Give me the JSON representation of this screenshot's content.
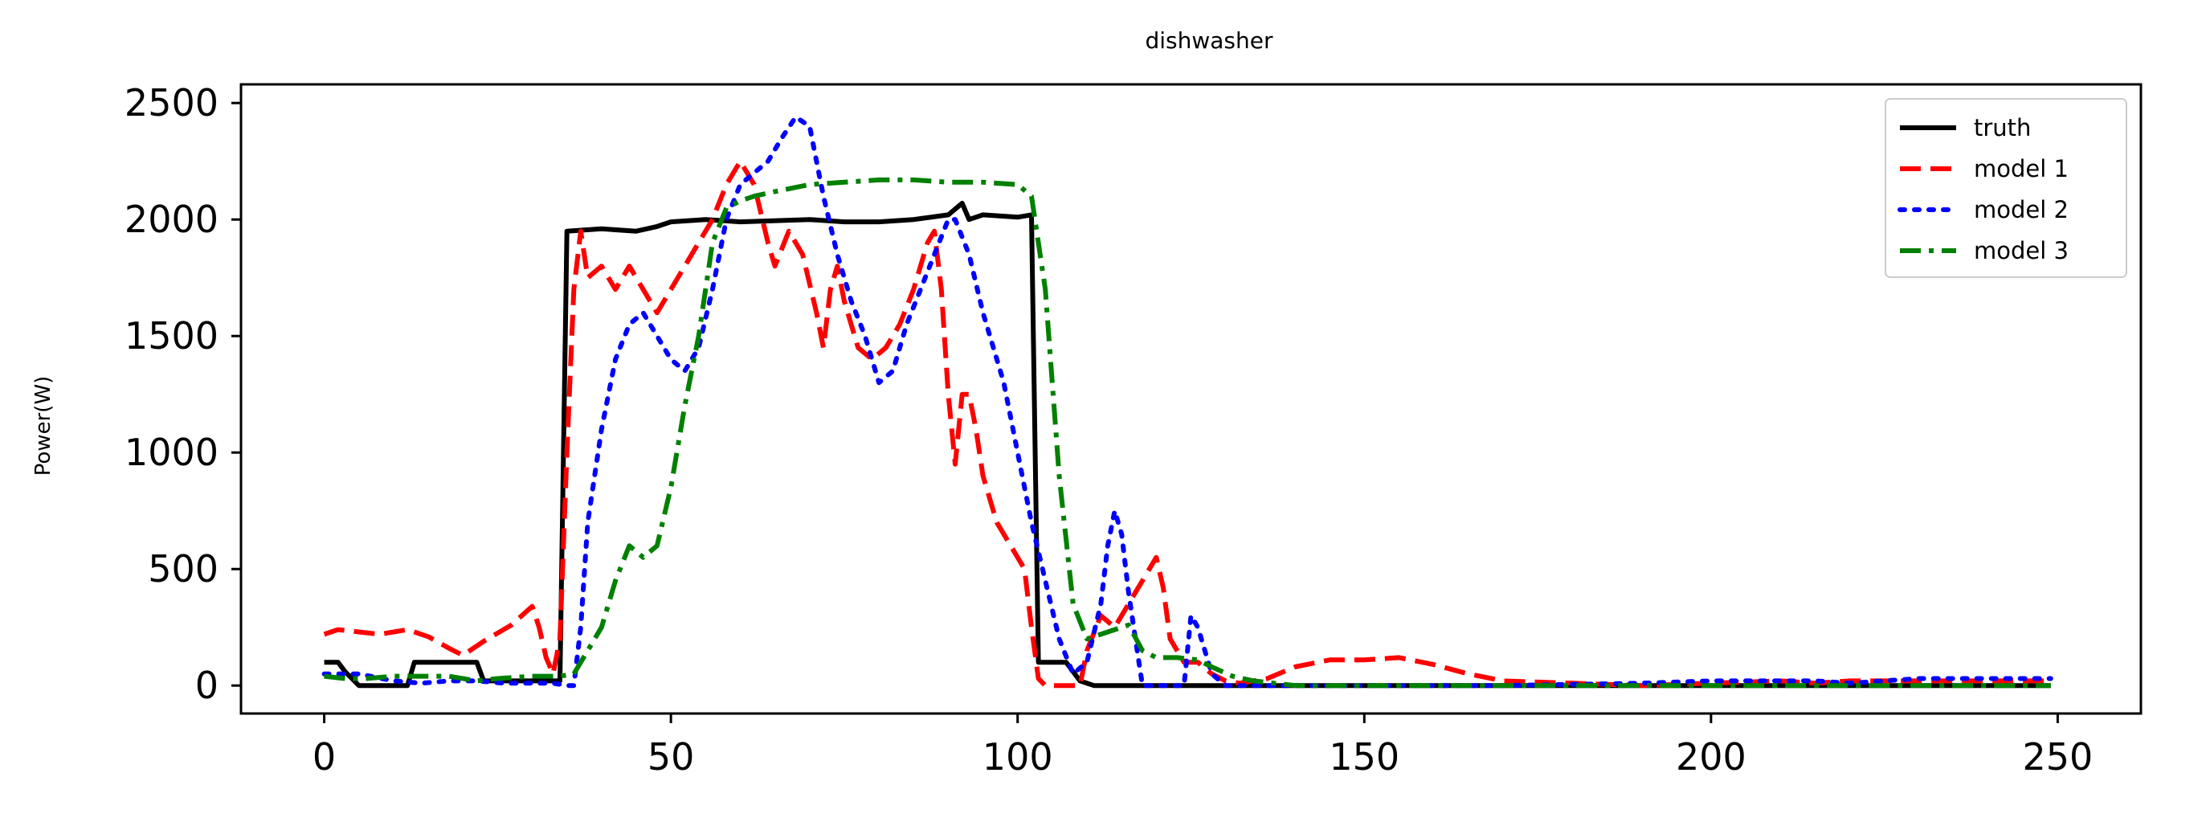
{
  "chart_data": {
    "type": "line",
    "title": "dishwasher",
    "xlabel": "",
    "ylabel": "Power(W)",
    "xlim": [
      -12,
      262
    ],
    "ylim": [
      -120,
      2580
    ],
    "xticks": [
      0,
      50,
      100,
      150,
      200,
      250
    ],
    "yticks": [
      0,
      500,
      1000,
      1500,
      2000,
      2500
    ],
    "grid": false,
    "legend_position": "top-right",
    "series": [
      {
        "name": "truth",
        "color": "#000000",
        "dash": "solid",
        "points": [
          [
            0,
            100
          ],
          [
            2,
            100
          ],
          [
            3,
            60
          ],
          [
            5,
            0
          ],
          [
            11,
            0
          ],
          [
            12,
            0
          ],
          [
            13,
            100
          ],
          [
            22,
            100
          ],
          [
            23,
            20
          ],
          [
            33,
            20
          ],
          [
            34,
            20
          ],
          [
            35,
            1950
          ],
          [
            40,
            1960
          ],
          [
            45,
            1950
          ],
          [
            48,
            1970
          ],
          [
            50,
            1990
          ],
          [
            55,
            2000
          ],
          [
            60,
            1990
          ],
          [
            70,
            2000
          ],
          [
            75,
            1990
          ],
          [
            80,
            1990
          ],
          [
            85,
            2000
          ],
          [
            90,
            2020
          ],
          [
            92,
            2070
          ],
          [
            93,
            2000
          ],
          [
            95,
            2020
          ],
          [
            100,
            2010
          ],
          [
            102,
            2020
          ],
          [
            103,
            100
          ],
          [
            107,
            100
          ],
          [
            109,
            20
          ],
          [
            111,
            0
          ],
          [
            150,
            0
          ],
          [
            249,
            0
          ]
        ]
      },
      {
        "name": "model 1",
        "color": "#ff0000",
        "dash": "dashed",
        "points": [
          [
            0,
            220
          ],
          [
            2,
            240
          ],
          [
            5,
            230
          ],
          [
            8,
            220
          ],
          [
            12,
            240
          ],
          [
            15,
            210
          ],
          [
            18,
            160
          ],
          [
            20,
            130
          ],
          [
            23,
            190
          ],
          [
            27,
            260
          ],
          [
            30,
            340
          ],
          [
            31,
            250
          ],
          [
            32,
            120
          ],
          [
            33,
            50
          ],
          [
            34,
            200
          ],
          [
            35,
            1000
          ],
          [
            36,
            1700
          ],
          [
            37,
            1950
          ],
          [
            38,
            1750
          ],
          [
            40,
            1800
          ],
          [
            42,
            1700
          ],
          [
            44,
            1800
          ],
          [
            46,
            1700
          ],
          [
            48,
            1600
          ],
          [
            50,
            1700
          ],
          [
            53,
            1850
          ],
          [
            56,
            2000
          ],
          [
            58,
            2150
          ],
          [
            60,
            2250
          ],
          [
            62,
            2150
          ],
          [
            64,
            1900
          ],
          [
            65,
            1800
          ],
          [
            67,
            1950
          ],
          [
            69,
            1850
          ],
          [
            71,
            1600
          ],
          [
            72,
            1450
          ],
          [
            73,
            1700
          ],
          [
            74,
            1800
          ],
          [
            75,
            1650
          ],
          [
            77,
            1450
          ],
          [
            79,
            1400
          ],
          [
            81,
            1450
          ],
          [
            83,
            1550
          ],
          [
            85,
            1700
          ],
          [
            87,
            1900
          ],
          [
            88,
            1950
          ],
          [
            89,
            1700
          ],
          [
            90,
            1250
          ],
          [
            91,
            950
          ],
          [
            92,
            1250
          ],
          [
            93,
            1250
          ],
          [
            94,
            1100
          ],
          [
            95,
            900
          ],
          [
            97,
            700
          ],
          [
            99,
            600
          ],
          [
            101,
            500
          ],
          [
            102,
            250
          ],
          [
            103,
            30
          ],
          [
            104,
            0
          ],
          [
            109,
            0
          ],
          [
            110,
            150
          ],
          [
            112,
            300
          ],
          [
            114,
            250
          ],
          [
            116,
            350
          ],
          [
            118,
            450
          ],
          [
            120,
            550
          ],
          [
            121,
            420
          ],
          [
            122,
            200
          ],
          [
            124,
            100
          ],
          [
            126,
            100
          ],
          [
            128,
            50
          ],
          [
            130,
            20
          ],
          [
            132,
            10
          ],
          [
            136,
            30
          ],
          [
            140,
            80
          ],
          [
            145,
            110
          ],
          [
            150,
            110
          ],
          [
            155,
            120
          ],
          [
            160,
            90
          ],
          [
            165,
            50
          ],
          [
            170,
            20
          ],
          [
            180,
            10
          ],
          [
            190,
            0
          ],
          [
            200,
            10
          ],
          [
            210,
            20
          ],
          [
            215,
            10
          ],
          [
            220,
            20
          ],
          [
            230,
            20
          ],
          [
            240,
            20
          ],
          [
            249,
            20
          ]
        ]
      },
      {
        "name": "model 2",
        "color": "#0000ff",
        "dash": "dotted",
        "points": [
          [
            0,
            50
          ],
          [
            5,
            50
          ],
          [
            10,
            20
          ],
          [
            14,
            10
          ],
          [
            18,
            20
          ],
          [
            22,
            20
          ],
          [
            26,
            10
          ],
          [
            30,
            10
          ],
          [
            33,
            10
          ],
          [
            35,
            0
          ],
          [
            36,
            0
          ],
          [
            37,
            250
          ],
          [
            38,
            700
          ],
          [
            40,
            1100
          ],
          [
            42,
            1400
          ],
          [
            44,
            1550
          ],
          [
            46,
            1600
          ],
          [
            48,
            1500
          ],
          [
            50,
            1400
          ],
          [
            52,
            1350
          ],
          [
            54,
            1450
          ],
          [
            56,
            1700
          ],
          [
            58,
            2000
          ],
          [
            60,
            2150
          ],
          [
            62,
            2200
          ],
          [
            64,
            2250
          ],
          [
            66,
            2350
          ],
          [
            68,
            2440
          ],
          [
            70,
            2400
          ],
          [
            72,
            2100
          ],
          [
            74,
            1850
          ],
          [
            76,
            1650
          ],
          [
            78,
            1500
          ],
          [
            80,
            1300
          ],
          [
            82,
            1350
          ],
          [
            84,
            1550
          ],
          [
            86,
            1700
          ],
          [
            88,
            1850
          ],
          [
            90,
            2000
          ],
          [
            91,
            2000
          ],
          [
            93,
            1850
          ],
          [
            95,
            1600
          ],
          [
            98,
            1300
          ],
          [
            100,
            1000
          ],
          [
            102,
            700
          ],
          [
            104,
            450
          ],
          [
            106,
            200
          ],
          [
            108,
            50
          ],
          [
            110,
            100
          ],
          [
            112,
            350
          ],
          [
            113,
            600
          ],
          [
            114,
            750
          ],
          [
            115,
            650
          ],
          [
            116,
            400
          ],
          [
            117,
            200
          ],
          [
            118,
            0
          ],
          [
            124,
            0
          ],
          [
            125,
            300
          ],
          [
            126,
            250
          ],
          [
            127,
            150
          ],
          [
            128,
            50
          ],
          [
            130,
            0
          ],
          [
            150,
            0
          ],
          [
            170,
            0
          ],
          [
            190,
            10
          ],
          [
            200,
            20
          ],
          [
            215,
            20
          ],
          [
            220,
            10
          ],
          [
            230,
            30
          ],
          [
            240,
            30
          ],
          [
            249,
            30
          ]
        ]
      },
      {
        "name": "model 3",
        "color": "#008000",
        "dash": "dashdot",
        "points": [
          [
            0,
            40
          ],
          [
            3,
            30
          ],
          [
            6,
            30
          ],
          [
            10,
            40
          ],
          [
            14,
            40
          ],
          [
            18,
            40
          ],
          [
            22,
            20
          ],
          [
            25,
            30
          ],
          [
            30,
            40
          ],
          [
            34,
            40
          ],
          [
            36,
            50
          ],
          [
            38,
            150
          ],
          [
            40,
            250
          ],
          [
            42,
            450
          ],
          [
            44,
            600
          ],
          [
            46,
            550
          ],
          [
            48,
            600
          ],
          [
            50,
            850
          ],
          [
            52,
            1200
          ],
          [
            54,
            1500
          ],
          [
            56,
            1900
          ],
          [
            58,
            2050
          ],
          [
            60,
            2080
          ],
          [
            62,
            2100
          ],
          [
            65,
            2120
          ],
          [
            70,
            2150
          ],
          [
            75,
            2160
          ],
          [
            80,
            2170
          ],
          [
            85,
            2170
          ],
          [
            90,
            2160
          ],
          [
            95,
            2160
          ],
          [
            100,
            2150
          ],
          [
            102,
            2100
          ],
          [
            104,
            1700
          ],
          [
            106,
            900
          ],
          [
            108,
            350
          ],
          [
            110,
            200
          ],
          [
            112,
            220
          ],
          [
            114,
            240
          ],
          [
            116,
            260
          ],
          [
            118,
            150
          ],
          [
            120,
            120
          ],
          [
            123,
            120
          ],
          [
            126,
            110
          ],
          [
            128,
            80
          ],
          [
            131,
            40
          ],
          [
            134,
            20
          ],
          [
            137,
            10
          ],
          [
            140,
            0
          ],
          [
            150,
            0
          ],
          [
            249,
            0
          ]
        ]
      }
    ]
  }
}
